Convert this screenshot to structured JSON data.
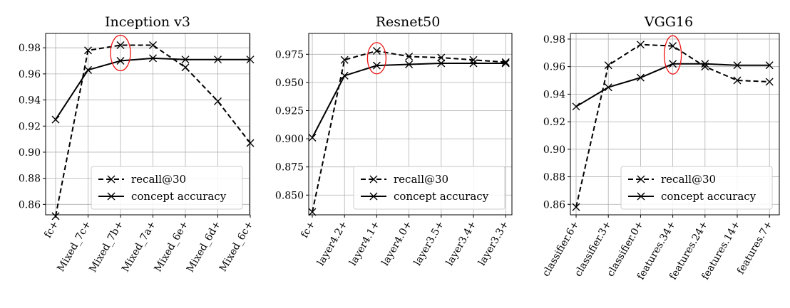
{
  "chart_data": [
    {
      "type": "line",
      "title": "Inception v3",
      "xlabel": "",
      "ylabel": "",
      "categories": [
        "fc+",
        "Mixed_7c+",
        "Mixed_7b+",
        "Mixed_7a+",
        "Mixed_6e+",
        "Mixed_6d+",
        "Mixed_6c+"
      ],
      "ylim": [
        0.852,
        0.991
      ],
      "yticks": [
        0.86,
        0.88,
        0.9,
        0.92,
        0.94,
        0.96,
        0.98
      ],
      "ytick_labels": [
        "0.86",
        "0.88",
        "0.90",
        "0.92",
        "0.94",
        "0.96",
        "0.98"
      ],
      "series": [
        {
          "name": "recall@30",
          "style": "dashed",
          "values": [
            0.851,
            0.978,
            0.982,
            0.982,
            0.965,
            0.939,
            0.907
          ]
        },
        {
          "name": "concept accuracy",
          "style": "solid",
          "values": [
            0.925,
            0.963,
            0.97,
            0.972,
            0.971,
            0.971,
            0.971
          ]
        }
      ],
      "highlight_index": 2,
      "grid": true,
      "legend": "lower-right"
    },
    {
      "type": "line",
      "title": "Resnet50",
      "xlabel": "",
      "ylabel": "",
      "categories": [
        "fc+",
        "layer4.2+",
        "layer4.1+",
        "layer4.0+",
        "layer3.5+",
        "layer3.4+",
        "layer3.3+"
      ],
      "ylim": [
        0.8325,
        0.9935
      ],
      "yticks": [
        0.85,
        0.875,
        0.9,
        0.925,
        0.95,
        0.975
      ],
      "ytick_labels": [
        "0.850",
        "0.875",
        "0.900",
        "0.925",
        "0.950",
        "0.975"
      ],
      "series": [
        {
          "name": "recall@30",
          "style": "dashed",
          "values": [
            0.835,
            0.97,
            0.978,
            0.973,
            0.972,
            0.97,
            0.968
          ]
        },
        {
          "name": "concept accuracy",
          "style": "solid",
          "values": [
            0.901,
            0.956,
            0.965,
            0.966,
            0.967,
            0.967,
            0.967
          ]
        }
      ],
      "highlight_index": 2,
      "grid": true,
      "legend": "lower-right"
    },
    {
      "type": "line",
      "title": "VGG16",
      "xlabel": "",
      "ylabel": "",
      "categories": [
        "classifier.6+",
        "classifier.3+",
        "classifier.0+",
        "features.34+",
        "features.24+",
        "features.14+",
        "features.7+"
      ],
      "ylim": [
        0.8524,
        0.9841
      ],
      "yticks": [
        0.86,
        0.88,
        0.9,
        0.92,
        0.94,
        0.96,
        0.98
      ],
      "ytick_labels": [
        "0.86",
        "0.88",
        "0.90",
        "0.92",
        "0.94",
        "0.96",
        "0.98"
      ],
      "series": [
        {
          "name": "recall@30",
          "style": "dashed",
          "values": [
            0.858,
            0.961,
            0.976,
            0.975,
            0.96,
            0.95,
            0.949
          ]
        },
        {
          "name": "concept accuracy",
          "style": "solid",
          "values": [
            0.931,
            0.945,
            0.952,
            0.962,
            0.962,
            0.961,
            0.961
          ]
        }
      ],
      "highlight_index": 3,
      "grid": true,
      "legend": "lower-right"
    }
  ]
}
